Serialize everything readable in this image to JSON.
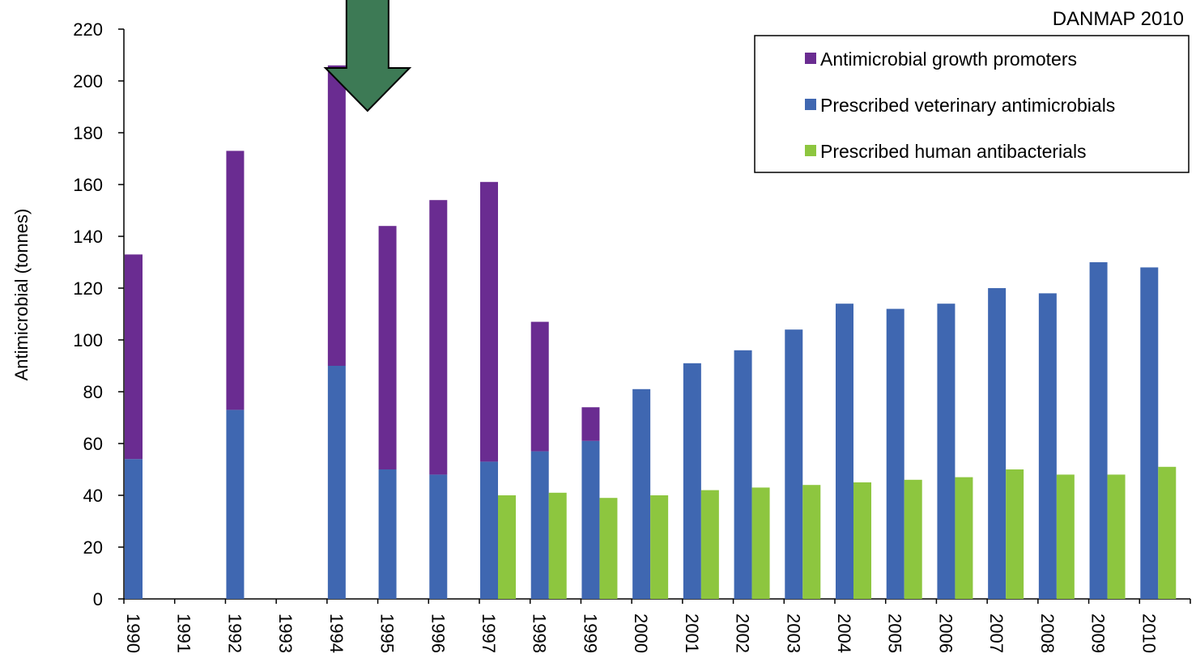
{
  "chart_data": {
    "type": "bar",
    "title": "DANMAP 2010",
    "ylabel": "Antimicrobial (tonnes)",
    "xlabel": "",
    "ylim": [
      0,
      220
    ],
    "yticks": [
      0,
      20,
      40,
      60,
      80,
      100,
      120,
      140,
      160,
      180,
      200,
      220
    ],
    "categories": [
      "1990",
      "1991",
      "1992",
      "1993",
      "1994",
      "1995",
      "1996",
      "1997",
      "1998",
      "1999",
      "2000",
      "2001",
      "2002",
      "2003",
      "2004",
      "2005",
      "2006",
      "2007",
      "2008",
      "2009",
      "2010"
    ],
    "series": [
      {
        "name": "Antimicrobial growth promoters",
        "color": "#6A2C91",
        "stack": "animal",
        "values": [
          79,
          null,
          100,
          null,
          116,
          94,
          106,
          108,
          50,
          13,
          null,
          null,
          null,
          null,
          null,
          null,
          null,
          null,
          null,
          null,
          null
        ]
      },
      {
        "name": "Prescribed veterinary antimicrobials",
        "color": "#3F67B1",
        "stack": "animal",
        "values": [
          54,
          null,
          73,
          null,
          90,
          50,
          48,
          53,
          57,
          61,
          81,
          91,
          96,
          104,
          114,
          112,
          114,
          120,
          118,
          130,
          128
        ]
      },
      {
        "name": "Prescribed human antibacterials",
        "color": "#8DC63F",
        "stack": "human",
        "values": [
          null,
          null,
          null,
          null,
          null,
          null,
          null,
          40,
          41,
          39,
          40,
          42,
          43,
          44,
          45,
          46,
          47,
          50,
          48,
          48,
          51
        ]
      }
    ],
    "legend_position": "top-right",
    "annotation": {
      "type": "arrow",
      "direction": "down",
      "color": "#3D7A55",
      "points_to": "1994"
    },
    "grid": false
  }
}
